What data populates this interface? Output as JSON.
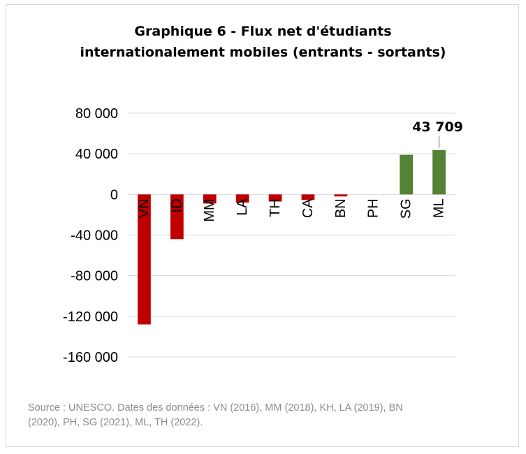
{
  "chart_data": {
    "type": "bar",
    "title_lines": [
      "Graphique 6 - Flux net d'étudiants",
      "internationalement mobiles (entrants - sortants)"
    ],
    "categories": [
      "VN",
      "ID",
      "MM",
      "LA",
      "TH",
      "CA",
      "BN",
      "PH",
      "SG",
      "ML"
    ],
    "values": [
      -128000,
      -44000,
      -9000,
      -8000,
      -7000,
      -5500,
      -2000,
      0,
      39000,
      43709
    ],
    "colors": {
      "negative": "#c00000",
      "positive": "#548235"
    },
    "ylim": [
      -160000,
      80000
    ],
    "yticks": [
      80000,
      40000,
      0,
      -40000,
      -80000,
      -120000,
      -160000
    ],
    "ytick_labels": [
      "80 000",
      "40 000",
      "0",
      "-40 000",
      "-80 000",
      "-120 000",
      "-160 000"
    ],
    "annotation": {
      "category": "ML",
      "label": "43 709"
    },
    "grid": true,
    "legend": false
  },
  "source_lines": [
    "Source : UNESCO. Dates des données : VN (2016), MM (2018), KH, LA (2019), BN",
    "(2020), PH, SG (2021), ML, TH (2022)."
  ]
}
